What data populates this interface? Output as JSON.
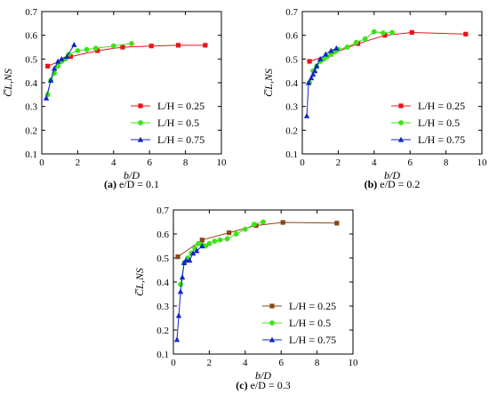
{
  "chart_data": [
    {
      "type": "line",
      "caption": {
        "label": "(a)",
        "text": "e/D = 0.1"
      },
      "xlabel": "b/D",
      "ylabel": "C̅L,NS",
      "xlim": [
        0,
        10
      ],
      "ylim": [
        0.1,
        0.7
      ],
      "xticks": [
        "0",
        "2",
        "4",
        "6",
        "8",
        "10"
      ],
      "yticks": [
        "0.1",
        "0.2",
        "0.3",
        "0.4",
        "0.5",
        "0.6",
        "0.7"
      ],
      "legend_position": "bottom-right",
      "series": [
        {
          "name": "L/H = 0.25",
          "color": "#e8141c",
          "marker": "square",
          "x": [
            0.33,
            1.6,
            3.1,
            4.5,
            6.1,
            7.6,
            9.1
          ],
          "y": [
            0.47,
            0.51,
            0.535,
            0.55,
            0.555,
            0.558,
            0.558
          ]
        },
        {
          "name": "L/H = 0.5",
          "color": "#3ce414",
          "marker": "circle",
          "x": [
            0.33,
            0.5,
            0.7,
            0.9,
            1.1,
            1.3,
            1.5,
            2.0,
            2.5,
            3.0,
            4.0,
            5.0
          ],
          "y": [
            0.35,
            0.41,
            0.44,
            0.47,
            0.49,
            0.5,
            0.52,
            0.535,
            0.54,
            0.545,
            0.555,
            0.565
          ]
        },
        {
          "name": "L/H = 0.75",
          "color": "#1424c8",
          "marker": "triangle",
          "x": [
            0.25,
            0.5,
            0.7,
            0.9,
            1.1,
            1.4,
            1.8
          ],
          "y": [
            0.335,
            0.41,
            0.46,
            0.49,
            0.5,
            0.51,
            0.56
          ]
        }
      ]
    },
    {
      "type": "line",
      "caption": {
        "label": "(b)",
        "text": "e/D = 0.2"
      },
      "xlabel": "b/D",
      "ylabel": "C̅L,NS",
      "xlim": [
        0,
        10
      ],
      "ylim": [
        0.1,
        0.7
      ],
      "xticks": [
        "0",
        "2",
        "4",
        "6",
        "8",
        "10"
      ],
      "yticks": [
        "0.1",
        "0.2",
        "0.3",
        "0.4",
        "0.5",
        "0.6",
        "0.7"
      ],
      "legend_position": "bottom-right",
      "series": [
        {
          "name": "L/H = 0.25",
          "color": "#e8141c",
          "marker": "square",
          "x": [
            0.4,
            1.6,
            3.1,
            4.6,
            6.1,
            9.1
          ],
          "y": [
            0.49,
            0.52,
            0.565,
            0.6,
            0.612,
            0.605
          ]
        },
        {
          "name": "L/H = 0.5",
          "color": "#3ce414",
          "marker": "circle",
          "x": [
            0.4,
            0.6,
            0.8,
            1.0,
            1.2,
            1.4,
            1.6,
            1.8,
            2.0,
            2.5,
            3.0,
            3.5,
            4.0,
            4.5,
            5.0
          ],
          "y": [
            0.4,
            0.45,
            0.47,
            0.49,
            0.5,
            0.51,
            0.52,
            0.53,
            0.54,
            0.55,
            0.57,
            0.585,
            0.615,
            0.61,
            0.612
          ]
        },
        {
          "name": "L/H = 0.75",
          "color": "#1424c8",
          "marker": "triangle",
          "x": [
            0.25,
            0.35,
            0.5,
            0.6,
            0.7,
            0.8,
            1.0,
            1.3,
            1.6,
            1.9
          ],
          "y": [
            0.26,
            0.4,
            0.42,
            0.435,
            0.45,
            0.47,
            0.5,
            0.52,
            0.535,
            0.545
          ]
        }
      ]
    },
    {
      "type": "line",
      "caption": {
        "label": "(c)",
        "text": "e/D = 0.3"
      },
      "xlabel": "b/D",
      "ylabel": "C̅L,NS",
      "xlim": [
        0,
        10
      ],
      "ylim": [
        0.1,
        0.7
      ],
      "xticks": [
        "0",
        "2",
        "4",
        "6",
        "8",
        "10"
      ],
      "yticks": [
        "0.1",
        "0.2",
        "0.3",
        "0.4",
        "0.5",
        "0.6",
        "0.7"
      ],
      "legend_position": "bottom-right",
      "series": [
        {
          "name": "L/H = 0.25",
          "color": "#8b4513",
          "marker": "square",
          "x": [
            0.25,
            1.6,
            3.1,
            4.6,
            6.1,
            9.1
          ],
          "y": [
            0.505,
            0.575,
            0.605,
            0.635,
            0.648,
            0.645
          ]
        },
        {
          "name": "L/H = 0.5",
          "color": "#3ce414",
          "marker": "circle",
          "x": [
            0.4,
            0.6,
            0.8,
            1.0,
            1.2,
            1.4,
            1.6,
            1.8,
            2.0,
            2.3,
            2.6,
            3.0,
            3.5,
            4.0,
            4.5,
            5.0
          ],
          "y": [
            0.39,
            0.48,
            0.5,
            0.52,
            0.54,
            0.56,
            0.555,
            0.55,
            0.56,
            0.57,
            0.575,
            0.58,
            0.6,
            0.62,
            0.64,
            0.65
          ]
        },
        {
          "name": "L/H = 0.75",
          "color": "#1424c8",
          "marker": "triangle",
          "x": [
            0.2,
            0.3,
            0.4,
            0.5,
            0.6,
            0.7,
            0.9,
            1.1,
            1.3,
            1.6
          ],
          "y": [
            0.16,
            0.26,
            0.36,
            0.42,
            0.48,
            0.49,
            0.49,
            0.52,
            0.53,
            0.55
          ]
        }
      ]
    }
  ]
}
